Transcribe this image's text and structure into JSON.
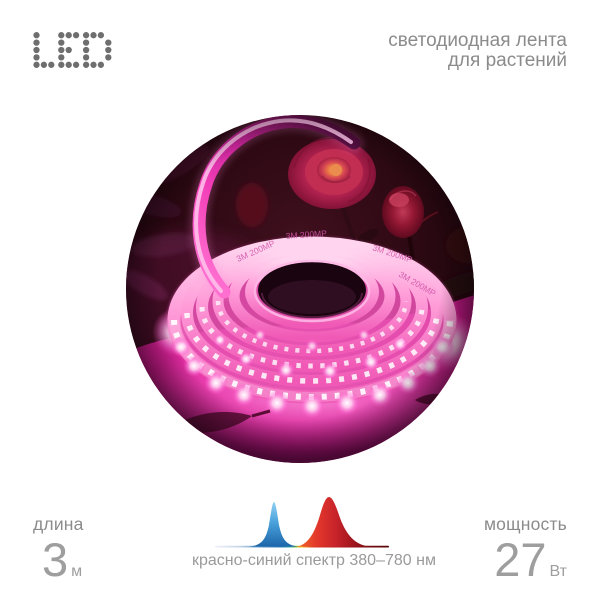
{
  "brand": {
    "logo_text": "LED"
  },
  "header": {
    "tagline_line1": "светодиодная лента",
    "tagline_line2": "для растений"
  },
  "photo": {
    "description": "coiled pink LED grow strip glowing on a table with roses in dark background",
    "strip_marking": "3M 200MP"
  },
  "specs": {
    "length": {
      "label": "длина",
      "value": "3",
      "unit": "м"
    },
    "power": {
      "label": "мощность",
      "value": "27",
      "unit": "Вт"
    }
  },
  "spectrum": {
    "caption": "красно-синий спектр 380–780 нм",
    "icon": "red-blue-spectrum-peaks",
    "colors": {
      "blue_top": "#8fd0f2",
      "blue_deep": "#1c64a8",
      "red_bright": "#e2372b",
      "red_dark": "#6d0a10",
      "yellow": "#f2d22c",
      "orange": "#f0941d"
    }
  },
  "colors": {
    "logo_gray": "#6e6e6e",
    "text_gray": "#8b8b8b",
    "value_gray": "#9e9e9e",
    "accent_pink": "#ff4fc0"
  }
}
